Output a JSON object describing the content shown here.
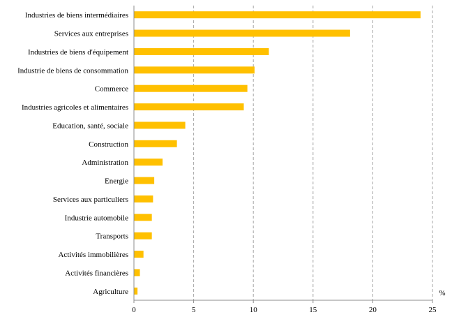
{
  "chart_data": {
    "type": "bar",
    "orientation": "horizontal",
    "categories": [
      "Industries de biens intermédiaires",
      "Services aux entreprises",
      "Industries de biens d'équipement",
      "Industrie de biens de consommation",
      "Commerce",
      "Industries agricoles et alimentaires",
      "Education, santé, sociale",
      "Construction",
      "Administration",
      "Energie",
      "Services aux particuliers",
      "Industrie automobile",
      "Transports",
      "Activités immobilières",
      "Activités financières",
      "Agriculture"
    ],
    "values": [
      24.0,
      18.1,
      11.3,
      10.1,
      9.5,
      9.2,
      4.3,
      3.6,
      2.4,
      1.7,
      1.6,
      1.5,
      1.5,
      0.8,
      0.5,
      0.3
    ],
    "xlim": [
      0,
      25
    ],
    "xticks": [
      "0",
      "5",
      "10",
      "15",
      "20",
      "25"
    ],
    "tick_values": [
      0,
      5,
      10,
      15,
      20,
      25
    ],
    "unit": "%",
    "grid": "vertical dashed",
    "bar_color": "#FFC000"
  }
}
